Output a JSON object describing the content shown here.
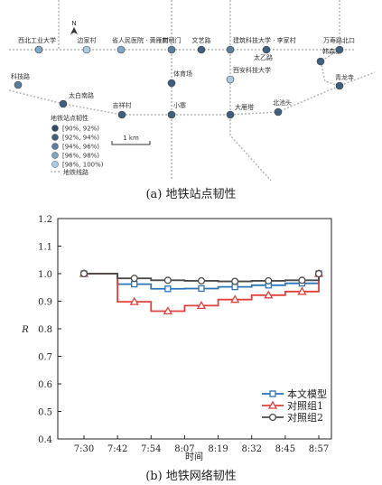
{
  "map": {
    "stations": [
      {
        "name": "西北工业大学",
        "level": 3
      },
      {
        "name": "边家村",
        "level": 4
      },
      {
        "name": "省人民医院 · 黄雁村",
        "level": 3
      },
      {
        "name": "南稍门",
        "level": 2
      },
      {
        "name": "文艺路",
        "level": 1
      },
      {
        "name": "建筑科技大学 · 李家村",
        "level": 2
      },
      {
        "name": "西安科技大学",
        "level": 4
      },
      {
        "name": "太乙路",
        "level": 1
      },
      {
        "name": "韩森寨",
        "level": 1
      },
      {
        "name": "万寿路北口",
        "level": 1
      },
      {
        "name": "科技路",
        "level": 2
      },
      {
        "name": "太白南路",
        "level": 1
      },
      {
        "name": "吉祥村",
        "level": 1
      },
      {
        "name": "小寨",
        "level": 1
      },
      {
        "name": "大雁塔",
        "level": 1
      },
      {
        "name": "北池头",
        "level": 1
      },
      {
        "name": "体育场",
        "level": 1
      },
      {
        "name": "青龙寺",
        "level": 1
      }
    ],
    "legend_title": "地铁站点韧性",
    "legend_items": [
      "[90%, 92%)",
      "[92%, 94%)",
      "[94%, 96%)",
      "[96%, 98%)",
      "[98%, 100%)"
    ],
    "legend_line": "地铁线路",
    "scale_label": "1 km",
    "north_label": "N",
    "colors": {
      "levels": [
        "#2f4a66",
        "#3e5f80",
        "#587ea0",
        "#7ea6c7",
        "#a8cbe6"
      ],
      "line": "#b5b5b5"
    }
  },
  "captions": {
    "a": "(a) 地铁站点韧性",
    "b": "(b) 地铁网络韧性"
  },
  "chart_data": {
    "type": "line",
    "ylabel": "R",
    "xlabel": "时间",
    "ylim": [
      0.4,
      1.2
    ],
    "yticks": [
      "0.4",
      "0.5",
      "0.6",
      "0.7",
      "0.8",
      "0.9",
      "1.0",
      "1.1",
      "1.2"
    ],
    "categories": [
      "7:30",
      "7:42",
      "7:54",
      "8:07",
      "8:19",
      "8:32",
      "8:45",
      "8:57"
    ],
    "step": true,
    "legend_position": "bottom-right",
    "series": [
      {
        "name": "本文模型",
        "color": "#2b74b5",
        "marker": "square",
        "values": [
          1.0,
          0.962,
          0.945,
          0.946,
          0.952,
          0.958,
          0.965,
          1.0
        ]
      },
      {
        "name": "对照组1",
        "color": "#e2413b",
        "marker": "triangle",
        "values": [
          1.0,
          0.898,
          0.864,
          0.884,
          0.906,
          0.922,
          0.935,
          1.0
        ]
      },
      {
        "name": "对照组2",
        "color": "#4b4b4b",
        "marker": "circle",
        "values": [
          1.0,
          0.983,
          0.976,
          0.974,
          0.972,
          0.974,
          0.976,
          1.0
        ]
      }
    ]
  }
}
